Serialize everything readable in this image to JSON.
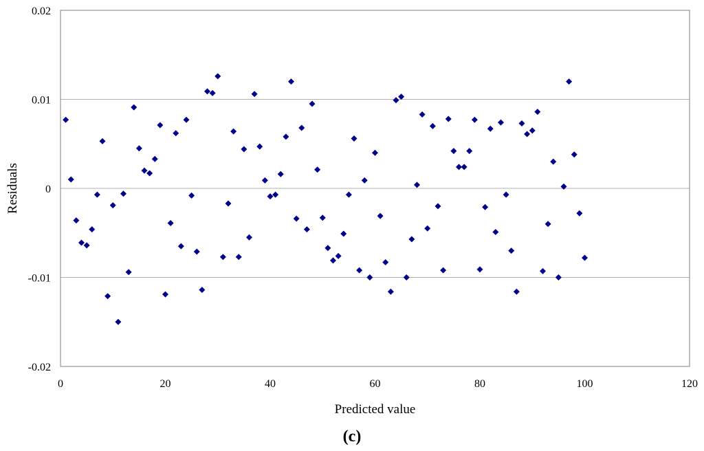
{
  "chart_data": {
    "type": "scatter",
    "xlabel": "Predicted value",
    "ylabel": "Residuals",
    "caption": "(c)",
    "xlim": [
      0,
      120
    ],
    "ylim": [
      -0.02,
      0.02
    ],
    "x_ticks": [
      "0",
      "20",
      "40",
      "60",
      "80",
      "100",
      "120"
    ],
    "y_ticks": [
      "-0.02",
      "-0.01",
      "0",
      "0.01",
      "0.02"
    ],
    "grid": "horizontal",
    "marker": "diamond",
    "marker_color": "#00008b",
    "series": [
      {
        "x": [
          1,
          2,
          3,
          4,
          5,
          6,
          7,
          8,
          9,
          10,
          11,
          12,
          13,
          14,
          15,
          16,
          17,
          18,
          19,
          20,
          21,
          22,
          23,
          24,
          25,
          26,
          27,
          28,
          29,
          30,
          31,
          32,
          33,
          34,
          35,
          36,
          37,
          38,
          39,
          40,
          41,
          42,
          43,
          44,
          45,
          46,
          47,
          48,
          49,
          50,
          51,
          52,
          53,
          54,
          55,
          56,
          57,
          58,
          59,
          60,
          61,
          62,
          63,
          64,
          65,
          66,
          67,
          68,
          69,
          70,
          71,
          72,
          73,
          74,
          75,
          76,
          77,
          78,
          79,
          80,
          81,
          82,
          83,
          84,
          85,
          86,
          87,
          88,
          89,
          90,
          91,
          92,
          93,
          94,
          95,
          96,
          97,
          98,
          99,
          100
        ],
        "y": [
          0.0077,
          0.001,
          -0.0036,
          -0.0061,
          -0.0064,
          -0.0046,
          -0.0007,
          0.0053,
          -0.0121,
          -0.0019,
          -0.015,
          -0.0006,
          -0.0094,
          0.0091,
          0.0045,
          0.002,
          0.0017,
          0.0033,
          0.0071,
          -0.0119,
          -0.0039,
          0.0062,
          -0.0065,
          0.0077,
          -0.0008,
          -0.0071,
          -0.0114,
          0.0109,
          0.0107,
          0.0126,
          -0.0077,
          -0.0017,
          0.0064,
          -0.0077,
          0.0044,
          -0.0055,
          0.0106,
          0.0047,
          0.0009,
          -0.0009,
          -0.0007,
          0.0016,
          0.0058,
          0.012,
          -0.0034,
          0.0068,
          -0.0046,
          0.0095,
          0.0021,
          -0.0033,
          -0.0067,
          -0.0081,
          -0.0076,
          -0.0051,
          -0.0007,
          0.0056,
          -0.0092,
          0.0009,
          -0.01,
          0.004,
          -0.0031,
          -0.0083,
          -0.0116,
          0.0099,
          0.0103,
          -0.01,
          -0.0057,
          0.0004,
          0.0083,
          -0.0045,
          0.007,
          -0.002,
          -0.0092,
          0.0078,
          0.0042,
          0.0024,
          0.0024,
          0.0042,
          0.0077,
          -0.0091,
          -0.0021,
          0.0067,
          -0.0049,
          0.0074,
          -0.0007,
          -0.007,
          -0.0116,
          0.0073,
          0.0061,
          0.0065,
          0.0086,
          -0.0093,
          -0.004,
          0.003,
          -0.01,
          0.0002,
          0.012,
          0.0038,
          -0.0028,
          -0.0078
        ]
      }
    ]
  }
}
